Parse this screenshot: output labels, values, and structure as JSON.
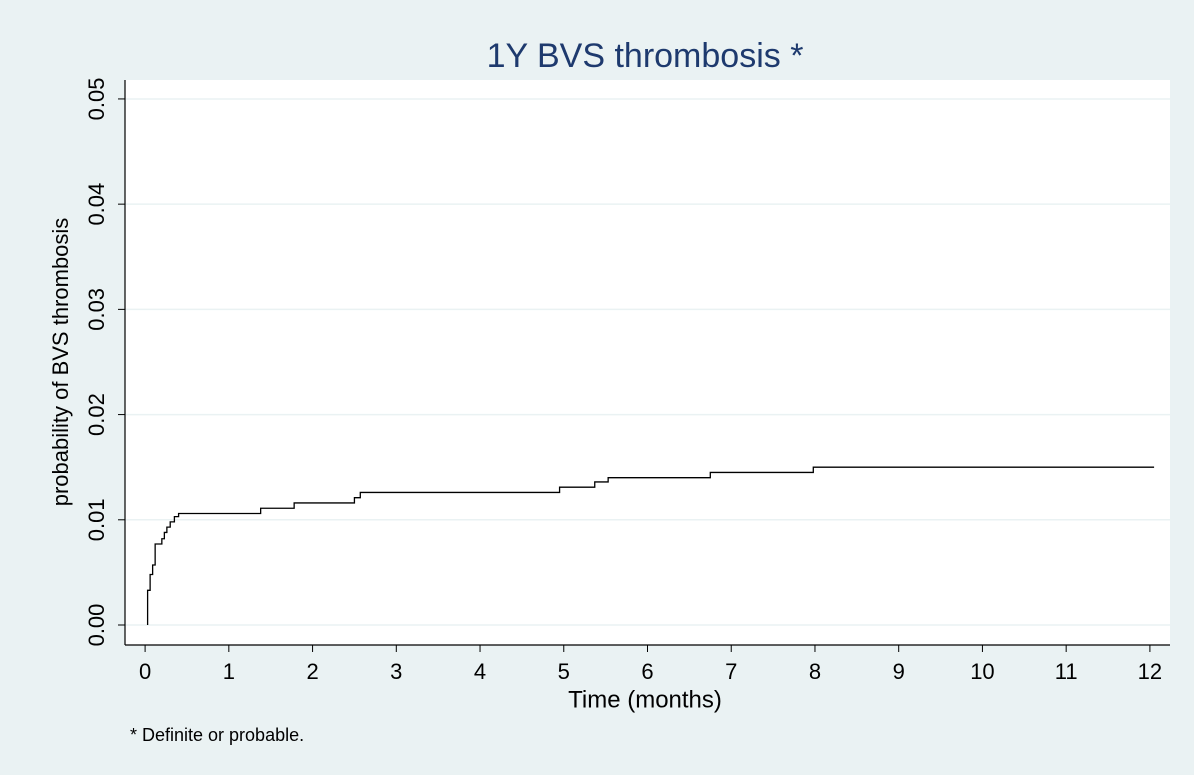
{
  "chart_data": {
    "type": "step",
    "title": "1Y BVS thrombosis *",
    "x_label": "Time (months)",
    "y_label": "probability of BVS thrombosis",
    "note": "* Definite or probable.",
    "x": [
      0.03,
      0.03,
      0.06,
      0.09,
      0.12,
      0.2,
      0.23,
      0.26,
      0.3,
      0.35,
      0.4,
      1.38,
      1.78,
      2.5,
      2.57,
      4.95,
      5.37,
      5.53,
      6.75,
      7.98,
      12.05
    ],
    "series": [
      {
        "name": "probability of BVS thrombosis",
        "color": "#000000",
        "values": [
          0,
          0.0033,
          0.0048,
          0.0057,
          0.0077,
          0.0082,
          0.0088,
          0.0093,
          0.0098,
          0.0103,
          0.0106,
          0.0111,
          0.0116,
          0.0121,
          0.0126,
          0.0131,
          0.0136,
          0.014,
          0.0145,
          0.015,
          0.015
        ]
      }
    ],
    "xlim": [
      -0.24,
      12.24
    ],
    "ylim": [
      -0.0019,
      0.0518
    ],
    "xticks": [
      0,
      1,
      2,
      3,
      4,
      5,
      6,
      7,
      8,
      9,
      10,
      11,
      12
    ],
    "yticks": [
      {
        "value": 0,
        "label": "0.00"
      },
      {
        "value": 0.01,
        "label": "0.01"
      },
      {
        "value": 0.02,
        "label": "0.02"
      },
      {
        "value": 0.03,
        "label": "0.03"
      },
      {
        "value": 0.04,
        "label": "0.04"
      },
      {
        "value": 0.05,
        "label": "0.05"
      }
    ],
    "grid": true
  }
}
